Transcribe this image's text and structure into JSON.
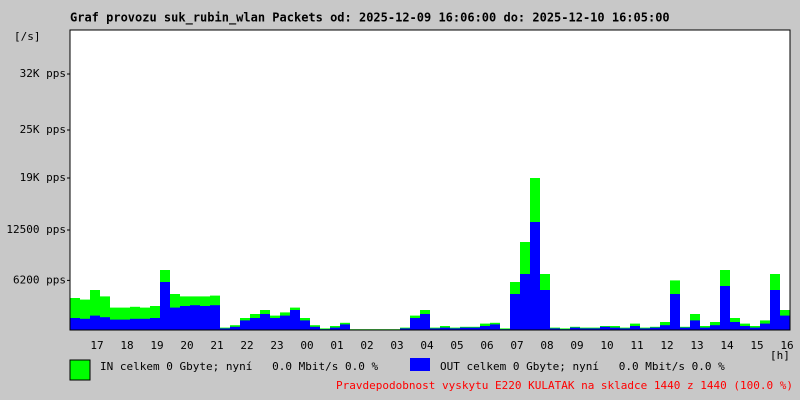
{
  "chart_data": {
    "type": "area",
    "title": "Graf provozu suk_rubin_wlan Packets od: 2025-12-09 16:06:00 do: 2025-12-10 16:05:00",
    "y_label": "[/s]",
    "x_label": "[h]",
    "note": "Pravdepodobnost vyskytu E220 KULATAK na skladce 1440 z 1440 (100.0 %)",
    "categories": [
      null,
      null,
      "17",
      null,
      null,
      "18",
      null,
      null,
      "19",
      null,
      null,
      "20",
      null,
      null,
      "21",
      null,
      null,
      "22",
      null,
      null,
      "23",
      null,
      null,
      "00",
      null,
      null,
      "01",
      null,
      null,
      "02",
      null,
      null,
      "03",
      null,
      null,
      "04",
      null,
      null,
      "05",
      null,
      null,
      "06",
      null,
      null,
      "07",
      null,
      null,
      "08",
      null,
      null,
      "09",
      null,
      null,
      "10",
      null,
      null,
      "11",
      null,
      null,
      "12",
      null,
      null,
      "13",
      null,
      null,
      "14",
      null,
      null,
      "15",
      null,
      null,
      "16"
    ],
    "ylim": [
      0,
      37500
    ],
    "yticks": [
      {
        "value": 6200,
        "label": "6200 pps"
      },
      {
        "value": 12500,
        "label": "12500 pps"
      },
      {
        "value": 19000,
        "label": "19K pps"
      },
      {
        "value": 25000,
        "label": "25K pps"
      },
      {
        "value": 32000,
        "label": "32K pps"
      }
    ],
    "series": [
      {
        "name": "IN celkem 0 Gbyte; nyní   0.0 Mbit/s 0.0 %",
        "color": "#00ff00",
        "values": [
          4000,
          3800,
          5000,
          4200,
          2800,
          2800,
          2900,
          2800,
          3000,
          7500,
          4500,
          4200,
          4200,
          4200,
          4300,
          300,
          600,
          1500,
          2000,
          2500,
          1800,
          2200,
          2800,
          1500,
          600,
          200,
          500,
          900,
          100,
          100,
          100,
          100,
          100,
          300,
          1800,
          2500,
          300,
          500,
          300,
          400,
          400,
          800,
          900,
          200,
          6000,
          11000,
          19000,
          7000,
          300,
          200,
          400,
          300,
          300,
          500,
          500,
          300,
          800,
          300,
          400,
          1000,
          6200,
          400,
          2000,
          500,
          1000,
          7500,
          1500,
          800,
          500,
          1200,
          7000,
          2500
        ]
      },
      {
        "name": "OUT celkem 0 Gbyte; nyní   0.0 Mbit/s 0.0 %",
        "color": "#0000ff",
        "values": [
          1500,
          1400,
          1800,
          1600,
          1300,
          1300,
          1400,
          1400,
          1500,
          6000,
          2800,
          3000,
          3100,
          3000,
          3100,
          200,
          400,
          1200,
          1500,
          2000,
          1500,
          1800,
          2500,
          1200,
          400,
          100,
          300,
          700,
          50,
          50,
          50,
          50,
          50,
          200,
          1500,
          2000,
          200,
          300,
          200,
          300,
          300,
          500,
          700,
          100,
          4500,
          7000,
          13500,
          5000,
          200,
          100,
          300,
          200,
          200,
          400,
          300,
          200,
          500,
          200,
          300,
          600,
          4500,
          300,
          1200,
          300,
          600,
          5500,
          1000,
          500,
          300,
          800,
          5000,
          1800
        ]
      }
    ]
  }
}
